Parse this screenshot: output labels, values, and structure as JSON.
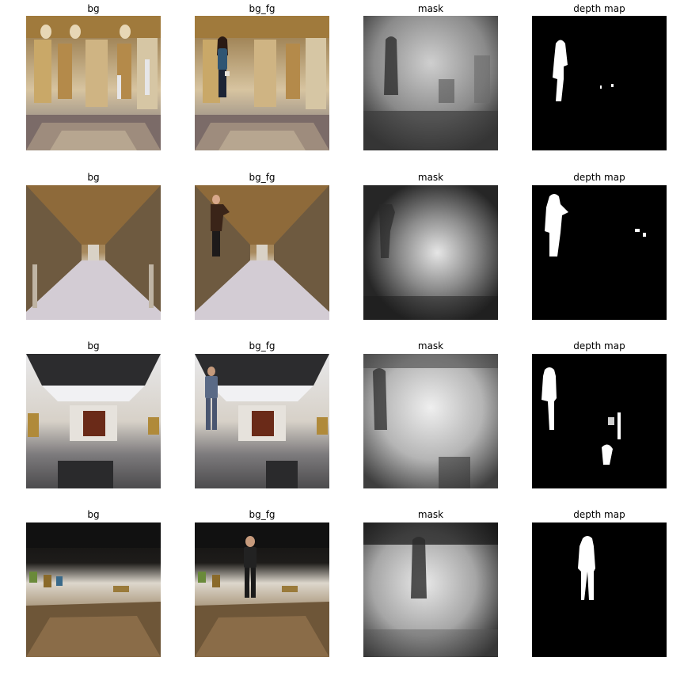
{
  "figure": {
    "rows": [
      {
        "scene": "baroque-gallery",
        "titles": [
          "bg",
          "bg_fg",
          "mask",
          "depth map"
        ]
      },
      {
        "scene": "long-corridor-gallery",
        "titles": [
          "bg",
          "bg_fg",
          "mask",
          "depth map"
        ]
      },
      {
        "scene": "modern-gallery-skylight",
        "titles": [
          "bg",
          "bg_fg",
          "mask",
          "depth map"
        ]
      },
      {
        "scene": "dark-gallery-spotlights",
        "titles": [
          "bg",
          "bg_fg",
          "mask",
          "depth map"
        ]
      }
    ]
  },
  "colors": {
    "background": "#ffffff",
    "title_text": "#000000",
    "mask_dark": "#111111",
    "mask_light": "#eeeeee",
    "silhouette": "#ffffff"
  }
}
